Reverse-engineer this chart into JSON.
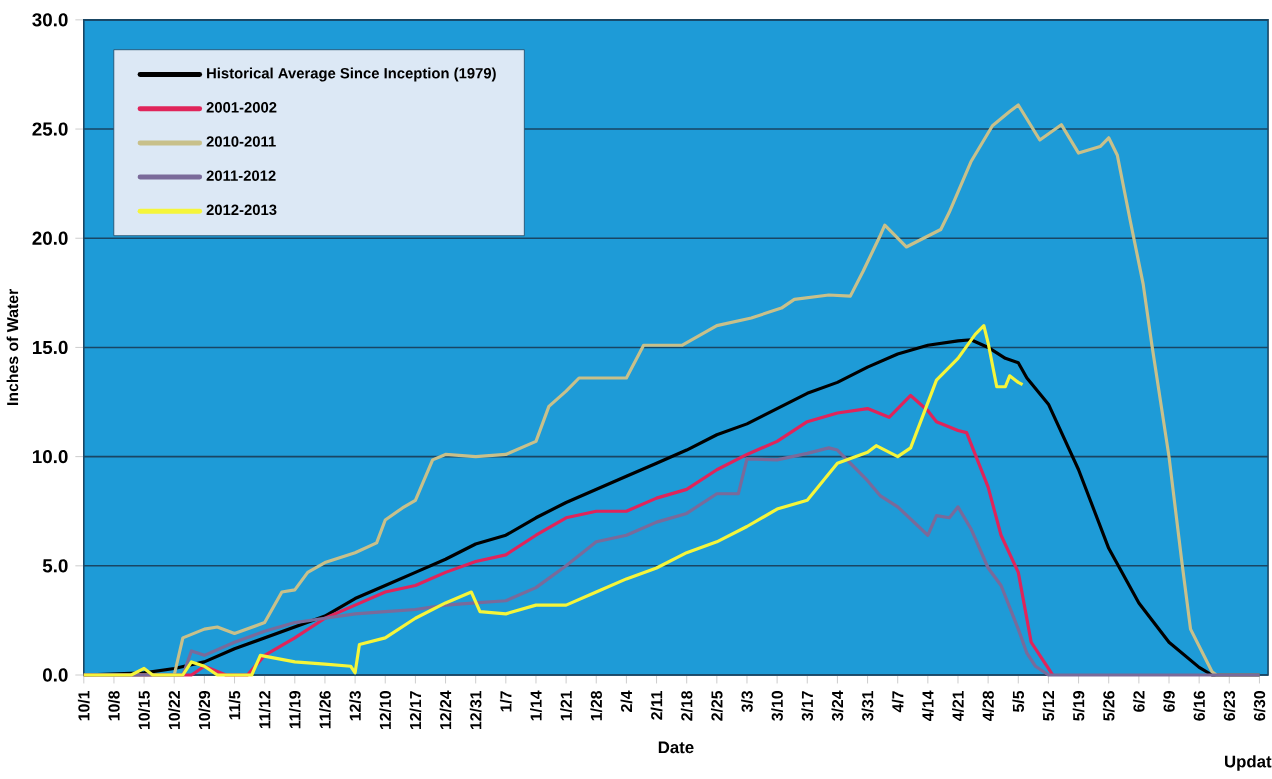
{
  "chart_data": {
    "type": "line",
    "xlabel": "Date",
    "ylabel": "Inches of Water",
    "annotations": [
      "Updat"
    ],
    "xlim": [
      "2011-10-01",
      "2012-07-02"
    ],
    "ylim": [
      0,
      30
    ],
    "yticks": [
      {
        "value": 0,
        "label": "0.0"
      },
      {
        "value": 5,
        "label": "5.0"
      },
      {
        "value": 10,
        "label": "10.0"
      },
      {
        "value": 15,
        "label": "15.0"
      },
      {
        "value": 20,
        "label": "20.0"
      },
      {
        "value": 25,
        "label": "25.0"
      },
      {
        "value": 30,
        "label": "30.0"
      }
    ],
    "xticks": [
      {
        "value": "2011-10-01",
        "label": "10/1"
      },
      {
        "value": "2011-10-08",
        "label": "10/8"
      },
      {
        "value": "2011-10-15",
        "label": "10/15"
      },
      {
        "value": "2011-10-22",
        "label": "10/22"
      },
      {
        "value": "2011-10-29",
        "label": "10/29"
      },
      {
        "value": "2011-11-05",
        "label": "11/5"
      },
      {
        "value": "2011-11-12",
        "label": "11/12"
      },
      {
        "value": "2011-11-19",
        "label": "11/19"
      },
      {
        "value": "2011-11-26",
        "label": "11/26"
      },
      {
        "value": "2011-12-03",
        "label": "12/3"
      },
      {
        "value": "2011-12-10",
        "label": "12/10"
      },
      {
        "value": "2011-12-17",
        "label": "12/17"
      },
      {
        "value": "2011-12-24",
        "label": "12/24"
      },
      {
        "value": "2011-12-31",
        "label": "12/31"
      },
      {
        "value": "2012-01-07",
        "label": "1/7"
      },
      {
        "value": "2012-01-14",
        "label": "1/14"
      },
      {
        "value": "2012-01-21",
        "label": "1/21"
      },
      {
        "value": "2012-01-28",
        "label": "1/28"
      },
      {
        "value": "2012-02-04",
        "label": "2/4"
      },
      {
        "value": "2012-02-11",
        "label": "2/11"
      },
      {
        "value": "2012-02-18",
        "label": "2/18"
      },
      {
        "value": "2012-02-25",
        "label": "2/25"
      },
      {
        "value": "2012-03-03",
        "label": "3/3"
      },
      {
        "value": "2012-03-10",
        "label": "3/10"
      },
      {
        "value": "2012-03-17",
        "label": "3/17"
      },
      {
        "value": "2012-03-24",
        "label": "3/24"
      },
      {
        "value": "2012-03-31",
        "label": "3/31"
      },
      {
        "value": "2012-04-07",
        "label": "4/7"
      },
      {
        "value": "2012-04-14",
        "label": "4/14"
      },
      {
        "value": "2012-04-21",
        "label": "4/21"
      },
      {
        "value": "2012-04-28",
        "label": "4/28"
      },
      {
        "value": "2012-05-05",
        "label": "5/5"
      },
      {
        "value": "2012-05-12",
        "label": "5/12"
      },
      {
        "value": "2012-05-19",
        "label": "5/19"
      },
      {
        "value": "2012-05-26",
        "label": "5/26"
      },
      {
        "value": "2012-06-02",
        "label": "6/2"
      },
      {
        "value": "2012-06-09",
        "label": "6/9"
      },
      {
        "value": "2012-06-16",
        "label": "6/16"
      },
      {
        "value": "2012-06-23",
        "label": "6/23"
      },
      {
        "value": "2012-06-30",
        "label": "6/30"
      }
    ],
    "grid": "y",
    "legend": "top left",
    "series": [
      {
        "name": "Historical Average Since Inception (1979)",
        "color": "#000000",
        "x": [
          "2011-10-01",
          "2011-10-15",
          "2011-10-22",
          "2011-10-29",
          "2011-11-05",
          "2011-11-12",
          "2011-11-19",
          "2011-11-26",
          "2011-12-03",
          "2011-12-10",
          "2011-12-17",
          "2011-12-24",
          "2011-12-31",
          "2012-01-07",
          "2012-01-14",
          "2012-01-21",
          "2012-01-28",
          "2012-02-04",
          "2012-02-11",
          "2012-02-18",
          "2012-02-25",
          "2012-03-03",
          "2012-03-10",
          "2012-03-17",
          "2012-03-24",
          "2012-03-31",
          "2012-04-07",
          "2012-04-14",
          "2012-04-21",
          "2012-04-24",
          "2012-04-28",
          "2012-05-02",
          "2012-05-05",
          "2012-05-07",
          "2012-05-12",
          "2012-05-19",
          "2012-05-26",
          "2012-06-02",
          "2012-06-09",
          "2012-06-16",
          "2012-06-19",
          "2012-06-30"
        ],
        "values": [
          0,
          0.1,
          0.3,
          0.6,
          1.2,
          1.7,
          2.2,
          2.7,
          3.5,
          4.1,
          4.7,
          5.3,
          6.0,
          6.4,
          7.2,
          7.9,
          8.5,
          9.1,
          9.7,
          10.3,
          11.0,
          11.5,
          12.2,
          12.9,
          13.4,
          14.1,
          14.7,
          15.1,
          15.3,
          15.35,
          15.0,
          14.5,
          14.3,
          13.6,
          12.4,
          9.4,
          5.8,
          3.3,
          1.5,
          0.35,
          0,
          0
        ]
      },
      {
        "name": "2001-2002",
        "color": "#e0245a",
        "x": [
          "2011-10-01",
          "2011-10-26",
          "2011-10-29",
          "2011-11-03",
          "2011-11-08",
          "2011-11-12",
          "2011-11-19",
          "2011-11-26",
          "2011-12-03",
          "2011-12-10",
          "2011-12-17",
          "2011-12-24",
          "2011-12-31",
          "2012-01-07",
          "2012-01-14",
          "2012-01-21",
          "2012-01-28",
          "2012-02-04",
          "2012-02-11",
          "2012-02-18",
          "2012-02-25",
          "2012-03-03",
          "2012-03-10",
          "2012-03-17",
          "2012-03-24",
          "2012-03-31",
          "2012-04-05",
          "2012-04-10",
          "2012-04-14",
          "2012-04-16",
          "2012-04-21",
          "2012-04-23",
          "2012-04-28",
          "2012-05-01",
          "2012-05-05",
          "2012-05-08",
          "2012-05-10",
          "2012-05-12",
          "2012-05-13"
        ],
        "values": [
          0,
          0,
          0.4,
          0,
          0,
          0.9,
          1.7,
          2.6,
          3.2,
          3.8,
          4.1,
          4.7,
          5.2,
          5.5,
          6.4,
          7.2,
          7.5,
          7.5,
          8.1,
          8.5,
          9.4,
          10.1,
          10.7,
          11.6,
          12.0,
          12.2,
          11.8,
          12.8,
          12.1,
          11.6,
          11.2,
          11.1,
          8.6,
          6.4,
          4.7,
          1.5,
          0.9,
          0.3,
          0
        ]
      },
      {
        "name": "2010-2011",
        "color": "#c8c08a",
        "x": [
          "2011-10-01",
          "2011-10-22",
          "2011-10-24",
          "2011-10-29",
          "2011-11-01",
          "2011-11-05",
          "2011-11-12",
          "2011-11-16",
          "2011-11-19",
          "2011-11-22",
          "2011-11-26",
          "2011-12-03",
          "2011-12-08",
          "2011-12-10",
          "2011-12-14",
          "2011-12-17",
          "2011-12-21",
          "2011-12-24",
          "2011-12-31",
          "2012-01-07",
          "2012-01-14",
          "2012-01-17",
          "2012-01-21",
          "2012-01-24",
          "2012-02-04",
          "2012-02-08",
          "2012-02-17",
          "2012-02-25",
          "2012-03-04",
          "2012-03-11",
          "2012-03-14",
          "2012-03-22",
          "2012-03-27",
          "2012-03-30",
          "2012-04-03",
          "2012-04-04",
          "2012-04-09",
          "2012-04-17",
          "2012-04-19",
          "2012-04-24",
          "2012-04-29",
          "2012-05-03",
          "2012-05-05",
          "2012-05-10",
          "2012-05-15",
          "2012-05-19",
          "2012-05-24",
          "2012-05-26",
          "2012-05-28",
          "2012-05-31",
          "2012-06-03",
          "2012-06-05",
          "2012-06-09",
          "2012-06-12",
          "2012-06-14",
          "2012-06-19",
          "2012-06-20",
          "2012-06-30"
        ],
        "values": [
          0,
          0,
          1.7,
          2.1,
          2.2,
          1.9,
          2.4,
          3.8,
          3.9,
          4.7,
          5.15,
          5.6,
          6.05,
          7.1,
          7.65,
          8.0,
          9.85,
          10.1,
          10.0,
          10.1,
          10.7,
          12.3,
          13.0,
          13.6,
          13.6,
          15.1,
          15.1,
          16.0,
          16.35,
          16.8,
          17.2,
          17.4,
          17.35,
          18.5,
          20.15,
          20.6,
          19.6,
          20.4,
          21.2,
          23.5,
          25.15,
          25.8,
          26.1,
          24.5,
          25.2,
          23.9,
          24.2,
          24.6,
          23.8,
          20.8,
          17.9,
          15.15,
          10.0,
          5.15,
          2.1,
          0.15,
          0,
          0
        ]
      },
      {
        "name": "2011-2012",
        "color": "#7a6a9a",
        "x": [
          "2011-10-01",
          "2011-10-24",
          "2011-10-26",
          "2011-10-29",
          "2011-11-05",
          "2011-11-12",
          "2011-11-19",
          "2011-11-26",
          "2011-12-03",
          "2011-12-10",
          "2011-12-17",
          "2011-12-24",
          "2011-12-31",
          "2012-01-07",
          "2012-01-14",
          "2012-01-21",
          "2012-01-28",
          "2012-02-04",
          "2012-02-11",
          "2012-02-18",
          "2012-02-25",
          "2012-03-01",
          "2012-03-03",
          "2012-03-10",
          "2012-03-17",
          "2012-03-22",
          "2012-03-24",
          "2012-03-31",
          "2012-04-03",
          "2012-04-07",
          "2012-04-14",
          "2012-04-16",
          "2012-04-19",
          "2012-04-21",
          "2012-04-24",
          "2012-04-28",
          "2012-05-01",
          "2012-05-05",
          "2012-05-07",
          "2012-05-09",
          "2012-05-12",
          "2012-06-30"
        ],
        "values": [
          0,
          0,
          1.1,
          0.9,
          1.5,
          2.0,
          2.4,
          2.6,
          2.8,
          2.9,
          3.0,
          3.2,
          3.3,
          3.4,
          4.0,
          5.0,
          6.1,
          6.4,
          7.0,
          7.4,
          8.3,
          8.3,
          9.9,
          9.85,
          10.15,
          10.4,
          10.3,
          8.9,
          8.2,
          7.7,
          6.4,
          7.3,
          7.2,
          7.7,
          6.7,
          4.9,
          4.1,
          2.1,
          1.0,
          0.4,
          0,
          0
        ]
      },
      {
        "name": "2012-2013",
        "color": "#f5f53a",
        "x": [
          "2011-10-01",
          "2011-10-12",
          "2011-10-15",
          "2011-10-17",
          "2011-10-24",
          "2011-10-26",
          "2011-10-29",
          "2011-11-01",
          "2011-11-09",
          "2011-11-11",
          "2011-11-19",
          "2011-11-26",
          "2011-12-02",
          "2011-12-03",
          "2011-12-04",
          "2011-12-10",
          "2011-12-17",
          "2011-12-24",
          "2011-12-30",
          "2012-01-01",
          "2012-01-07",
          "2012-01-14",
          "2012-01-21",
          "2012-01-28",
          "2012-02-04",
          "2012-02-11",
          "2012-02-18",
          "2012-02-25",
          "2012-03-03",
          "2012-03-10",
          "2012-03-17",
          "2012-03-24",
          "2012-03-31",
          "2012-04-02",
          "2012-04-07",
          "2012-04-10",
          "2012-04-16",
          "2012-04-21",
          "2012-04-25",
          "2012-04-27",
          "2012-04-28",
          "2012-04-30",
          "2012-05-02",
          "2012-05-03",
          "2012-05-05",
          "2012-05-06"
        ],
        "values": [
          0,
          0,
          0.3,
          0,
          0,
          0.6,
          0.4,
          0,
          0,
          0.9,
          0.6,
          0.5,
          0.4,
          0.1,
          1.4,
          1.7,
          2.6,
          3.3,
          3.8,
          2.9,
          2.8,
          3.2,
          3.2,
          3.8,
          4.4,
          4.9,
          5.6,
          6.1,
          6.8,
          7.6,
          8.0,
          9.7,
          10.2,
          10.5,
          10.0,
          10.4,
          13.5,
          14.5,
          15.6,
          16.0,
          15.2,
          13.2,
          13.2,
          13.7,
          13.4,
          13.3
        ]
      }
    ]
  }
}
